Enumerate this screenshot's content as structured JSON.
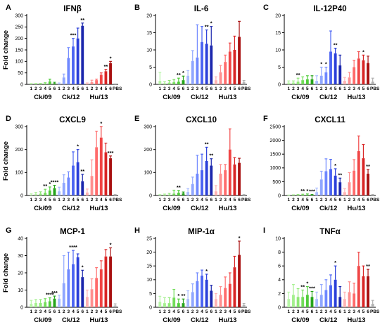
{
  "figure": {
    "ylabel": "Fold change",
    "groups": [
      "Ck/09",
      "Ck/12",
      "Hu/13"
    ],
    "bar_labels": [
      "1",
      "2",
      "3",
      "4",
      "5",
      "6",
      "1",
      "2",
      "3",
      "4",
      "5",
      "6",
      "1",
      "2",
      "3",
      "4",
      "5",
      "6",
      "PBS"
    ]
  },
  "colors": {
    "green": [
      "#b7f5a6",
      "#a5f08f",
      "#8fe877",
      "#72dd59",
      "#4fcc39",
      "#26a51b"
    ],
    "blue": [
      "#a9bcff",
      "#8fa6ff",
      "#6f88ff",
      "#4a63f2",
      "#2a3fd9",
      "#1b27ad"
    ],
    "red": [
      "#ffb3b3",
      "#ff8f8f",
      "#ff6b6b",
      "#f04545",
      "#d92525",
      "#a81010"
    ],
    "pbs": "#b0b0b0"
  },
  "chart_data": [
    {
      "type": "bar",
      "letter": "A",
      "title": "IFNβ",
      "ylim": [
        0,
        300
      ],
      "yticks": [
        0,
        50,
        100,
        150,
        200,
        250,
        300
      ],
      "values": [
        2,
        2,
        2,
        3,
        13,
        5,
        3,
        30,
        115,
        165,
        200,
        255,
        3,
        10,
        18,
        42,
        57,
        93,
        1
      ],
      "errors": [
        2,
        2,
        2,
        4,
        10,
        4,
        3,
        15,
        45,
        35,
        45,
        12,
        3,
        8,
        5,
        8,
        8,
        7,
        1
      ],
      "sig": [
        "",
        "",
        "",
        "",
        "",
        "",
        "",
        "",
        "",
        "***",
        "",
        "**",
        "",
        "",
        "",
        "",
        "**",
        "*",
        ""
      ]
    },
    {
      "type": "bar",
      "letter": "B",
      "title": "IL-6",
      "ylim": [
        0,
        20
      ],
      "yticks": [
        0,
        5,
        10,
        15,
        20
      ],
      "values": [
        1,
        0.3,
        0.5,
        0.6,
        0.8,
        1.2,
        2.5,
        6.8,
        7.8,
        12.3,
        11.8,
        11.3,
        1.2,
        3.5,
        6.5,
        9.5,
        10,
        13.8,
        0.6
      ],
      "errors": [
        2.5,
        0.5,
        0.6,
        0.8,
        1,
        1.2,
        1.5,
        3,
        9.5,
        4.5,
        4,
        5.5,
        1,
        2,
        2,
        2.5,
        4,
        4.5,
        0.5
      ],
      "sig": [
        "",
        "",
        "",
        "",
        "**",
        "*",
        "",
        "",
        "",
        "",
        "**",
        "*",
        "",
        "",
        "",
        "",
        "",
        "",
        ""
      ]
    },
    {
      "type": "bar",
      "letter": "C",
      "title": "IL-12P40",
      "ylim": [
        0,
        20
      ],
      "yticks": [
        0,
        5,
        10,
        15,
        20
      ],
      "values": [
        0.5,
        0.5,
        0.8,
        1.2,
        1.5,
        1.5,
        1,
        2.5,
        3.5,
        9.5,
        9,
        5.5,
        1,
        2,
        5,
        7.5,
        7,
        6.2,
        0.8
      ],
      "errors": [
        0.5,
        0.5,
        1,
        1,
        1,
        1,
        1.5,
        2.5,
        1.5,
        6,
        1.5,
        3,
        1,
        1.5,
        2,
        2,
        1.5,
        2,
        1
      ],
      "sig": [
        "",
        "",
        "**",
        "",
        "",
        "",
        "",
        "*",
        "*",
        "",
        "**",
        "",
        "",
        "",
        "",
        "",
        "*",
        "",
        ""
      ]
    },
    {
      "type": "bar",
      "letter": "D",
      "title": "CXCL9",
      "ylim": [
        0,
        300
      ],
      "yticks": [
        0,
        100,
        200,
        300
      ],
      "values": [
        3,
        5,
        8,
        12,
        22,
        32,
        18,
        55,
        78,
        130,
        145,
        62,
        13,
        85,
        210,
        252,
        188,
        162,
        2
      ],
      "errors": [
        4,
        8,
        8,
        15,
        15,
        12,
        18,
        35,
        25,
        60,
        55,
        30,
        15,
        70,
        70,
        60,
        40,
        10,
        2
      ],
      "sig": [
        "",
        "",
        "",
        "**",
        "*",
        "****",
        "",
        "",
        "",
        "",
        "*",
        "**",
        "",
        "",
        "",
        "*",
        "",
        "***",
        ""
      ]
    },
    {
      "type": "bar",
      "letter": "E",
      "title": "CXCL10",
      "ylim": [
        0,
        300
      ],
      "yticks": [
        0,
        100,
        200,
        300
      ],
      "values": [
        2,
        3,
        4,
        8,
        12,
        9,
        15,
        50,
        95,
        110,
        150,
        130,
        18,
        95,
        110,
        200,
        135,
        142,
        2
      ],
      "errors": [
        2,
        3,
        5,
        15,
        10,
        6,
        15,
        30,
        80,
        70,
        60,
        30,
        25,
        40,
        25,
        90,
        30,
        20,
        2
      ],
      "sig": [
        "",
        "",
        "",
        "",
        "**",
        "",
        "",
        "",
        "",
        "",
        "**",
        "**",
        "",
        "",
        "",
        "",
        "",
        "",
        ""
      ]
    },
    {
      "type": "bar",
      "letter": "F",
      "title": "CXCL11",
      "ylim": [
        0,
        2500
      ],
      "yticks": [
        0,
        500,
        1000,
        1500,
        2000,
        2500
      ],
      "values": [
        5,
        10,
        15,
        20,
        25,
        15,
        120,
        580,
        880,
        960,
        720,
        480,
        120,
        480,
        900,
        1610,
        1350,
        790,
        15
      ],
      "errors": [
        10,
        15,
        20,
        25,
        30,
        20,
        150,
        300,
        450,
        350,
        250,
        150,
        130,
        350,
        400,
        550,
        500,
        150,
        20
      ],
      "sig": [
        "",
        "",
        "",
        "**",
        "*",
        "***",
        "",
        "",
        "",
        "",
        "*",
        "**",
        "",
        "",
        "",
        "",
        "",
        "**",
        ""
      ]
    },
    {
      "type": "bar",
      "letter": "G",
      "title": "MCP-1",
      "ylim": [
        0,
        40
      ],
      "yticks": [
        0,
        10,
        20,
        30,
        40
      ],
      "values": [
        2,
        2.5,
        2.5,
        3,
        3.5,
        5,
        5,
        14,
        22,
        25,
        29,
        17.5,
        6,
        10.5,
        17,
        22,
        29.5,
        29.5,
        1
      ],
      "errors": [
        2,
        2,
        2,
        2,
        2,
        1.5,
        2,
        16,
        10,
        8,
        2,
        4,
        4,
        6,
        6,
        5,
        4,
        5,
        1
      ],
      "sig": [
        "",
        "",
        "",
        "",
        "****",
        "***",
        "",
        "",
        "",
        "****",
        "",
        "*",
        "",
        "",
        "",
        "",
        "",
        "*",
        ""
      ]
    },
    {
      "type": "bar",
      "letter": "H",
      "title": "MIP-1α",
      "ylim": [
        0,
        25
      ],
      "yticks": [
        0,
        5,
        10,
        15,
        20,
        25
      ],
      "values": [
        2,
        1.5,
        1.5,
        3.5,
        1.5,
        1.5,
        3,
        5.5,
        9.5,
        11.5,
        10,
        6,
        3,
        4.5,
        7,
        8.5,
        14.5,
        19,
        0.8
      ],
      "errors": [
        2,
        2,
        2,
        3,
        1.5,
        1.5,
        3,
        3,
        3,
        2,
        2,
        2,
        2,
        3,
        4,
        4,
        4,
        5,
        0.6
      ],
      "sig": [
        "",
        "",
        "",
        "",
        "*",
        "**",
        "",
        "",
        "",
        "",
        "*",
        "",
        "",
        "",
        "",
        "",
        "",
        "*",
        ""
      ]
    },
    {
      "type": "bar",
      "letter": "I",
      "title": "TNFα",
      "ylim": [
        0,
        10
      ],
      "yticks": [
        0,
        2,
        4,
        6,
        8,
        10
      ],
      "values": [
        1.2,
        1.8,
        1.5,
        1.5,
        1.8,
        1.5,
        1.2,
        1.8,
        2.5,
        3.2,
        4,
        1.5,
        1.2,
        2.2,
        2,
        6,
        4.5,
        4.5,
        0.5
      ],
      "errors": [
        1,
        1.5,
        1.2,
        1,
        1.2,
        0.8,
        1,
        1.5,
        1.5,
        1.5,
        2,
        1.5,
        1,
        1.5,
        1.5,
        2,
        1.5,
        1,
        0.5
      ],
      "sig": [
        "",
        "",
        "",
        "**",
        "*",
        "***",
        "",
        "",
        "",
        "",
        "*",
        "",
        "",
        "",
        "",
        "",
        "",
        "**",
        ""
      ]
    }
  ]
}
